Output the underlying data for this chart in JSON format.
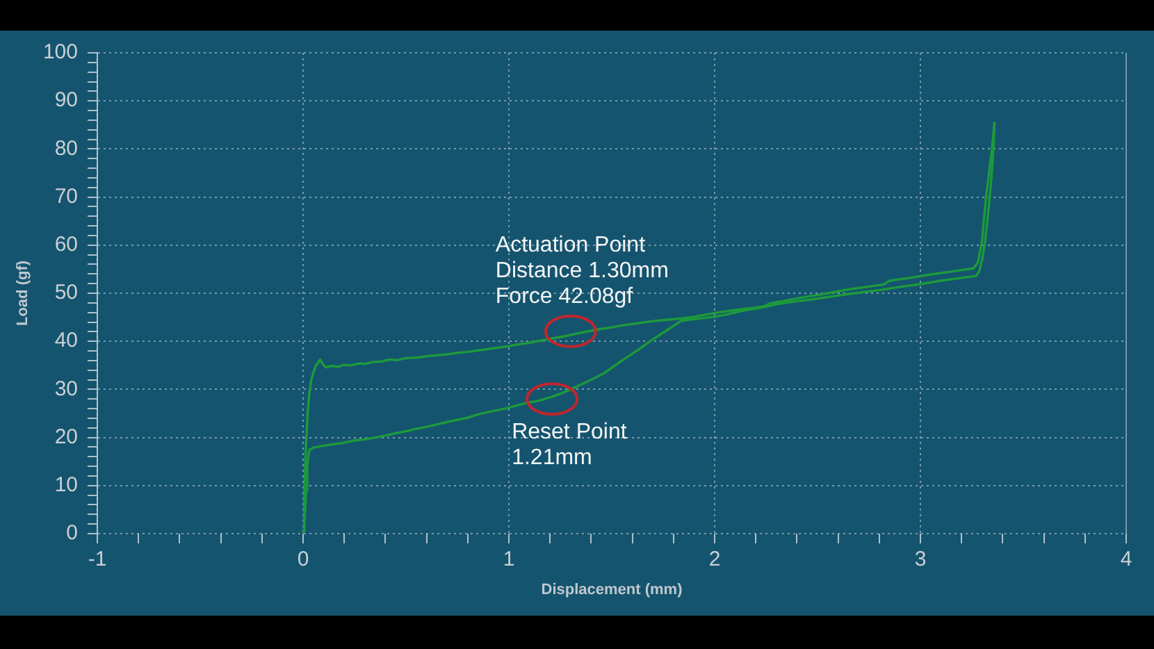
{
  "chart_data": {
    "type": "line",
    "xlabel": "Displacement (mm)",
    "ylabel": "Load (gf)",
    "xlim": [
      -1,
      4
    ],
    "ylim": [
      0,
      100
    ],
    "xticks": [
      -1,
      {
        "value": -0.8,
        "label": null
      },
      {
        "value": -0.6,
        "label": null
      },
      {
        "value": -0.4,
        "label": null
      },
      {
        "value": -0.2,
        "label": null
      },
      0,
      {
        "value": 0.2,
        "label": null
      },
      {
        "value": 0.4,
        "label": null
      },
      {
        "value": 0.6,
        "label": null
      },
      {
        "value": 0.8,
        "label": null
      },
      1,
      {
        "value": 1.2,
        "label": null
      },
      {
        "value": 1.4,
        "label": null
      },
      {
        "value": 1.6,
        "label": null
      },
      {
        "value": 1.8,
        "label": null
      },
      2,
      {
        "value": 2.2,
        "label": null
      },
      {
        "value": 2.4,
        "label": null
      },
      {
        "value": 2.6,
        "label": null
      },
      {
        "value": 2.8,
        "label": null
      },
      3,
      {
        "value": 3.2,
        "label": null
      },
      {
        "value": 3.4,
        "label": null
      },
      {
        "value": 3.6,
        "label": null
      },
      {
        "value": 3.8,
        "label": null
      },
      4
    ],
    "yticks": [
      0,
      {
        "value": 2,
        "label": null
      },
      {
        "value": 4,
        "label": null
      },
      {
        "value": 6,
        "label": null
      },
      {
        "value": 8,
        "label": null
      },
      10,
      {
        "value": 12,
        "label": null
      },
      {
        "value": 14,
        "label": null
      },
      {
        "value": 16,
        "label": null
      },
      {
        "value": 18,
        "label": null
      },
      20,
      {
        "value": 22,
        "label": null
      },
      {
        "value": 24,
        "label": null
      },
      {
        "value": 26,
        "label": null
      },
      {
        "value": 28,
        "label": null
      },
      30,
      {
        "value": 32,
        "label": null
      },
      {
        "value": 34,
        "label": null
      },
      {
        "value": 36,
        "label": null
      },
      {
        "value": 38,
        "label": null
      },
      40,
      {
        "value": 42,
        "label": null
      },
      {
        "value": 44,
        "label": null
      },
      {
        "value": 46,
        "label": null
      },
      {
        "value": 48,
        "label": null
      },
      50,
      {
        "value": 52,
        "label": null
      },
      {
        "value": 54,
        "label": null
      },
      {
        "value": 56,
        "label": null
      },
      {
        "value": 58,
        "label": null
      },
      60,
      {
        "value": 62,
        "label": null
      },
      {
        "value": 64,
        "label": null
      },
      {
        "value": 66,
        "label": null
      },
      {
        "value": 68,
        "label": null
      },
      70,
      {
        "value": 72,
        "label": null
      },
      {
        "value": 74,
        "label": null
      },
      {
        "value": 76,
        "label": null
      },
      {
        "value": 78,
        "label": null
      },
      80,
      {
        "value": 82,
        "label": null
      },
      {
        "value": 84,
        "label": null
      },
      {
        "value": 86,
        "label": null
      },
      {
        "value": 88,
        "label": null
      },
      90,
      {
        "value": 92,
        "label": null
      },
      {
        "value": 94,
        "label": null
      },
      {
        "value": 96,
        "label": null
      },
      {
        "value": 98,
        "label": null
      },
      100
    ],
    "grid": true,
    "series": [
      {
        "color": "#1d9a3c",
        "x": [
          0,
          0.006,
          0.01,
          0.016,
          0.022,
          0.03,
          0.04,
          0.06,
          0.083,
          0.095,
          0.11,
          0.14,
          0.17,
          0.2,
          0.23,
          0.27,
          0.3,
          0.34,
          0.38,
          0.42,
          0.46,
          0.5,
          0.55,
          0.6,
          0.65,
          0.7,
          0.75,
          0.8,
          0.85,
          0.9,
          0.95,
          1,
          1.05,
          1.1,
          1.15,
          1.2,
          1.25,
          1.3,
          1.35,
          1.4,
          1.45,
          1.5,
          1.55,
          1.6,
          1.65,
          1.7,
          1.75,
          1.8,
          1.85,
          1.9,
          1.95,
          2,
          2.05,
          2.1,
          2.15,
          2.2,
          2.24,
          2.27,
          2.35,
          2.45,
          2.55,
          2.65,
          2.75,
          2.82,
          2.85,
          2.95,
          3.05,
          3.15,
          3.26,
          3.28,
          3.3,
          3.31,
          3.32,
          3.335,
          3.35,
          3.36
        ],
        "values": [
          0.5,
          8,
          14,
          20,
          25,
          29,
          32,
          34.8,
          36.2,
          35.3,
          34.6,
          34.9,
          34.7,
          35.1,
          35,
          35.4,
          35.3,
          35.7,
          35.8,
          36.2,
          36.1,
          36.5,
          36.6,
          36.9,
          37.1,
          37.3,
          37.6,
          37.8,
          38.1,
          38.4,
          38.7,
          39,
          39.4,
          39.7,
          40.1,
          40.5,
          40.9,
          41.3,
          41.8,
          42.2,
          42.6,
          42.9,
          43.3,
          43.6,
          43.9,
          44.2,
          44.4,
          44.6,
          44.8,
          45.1,
          45.5,
          45.9,
          46.2,
          46.5,
          46.8,
          47,
          47.3,
          47.9,
          48.5,
          49.3,
          50,
          50.8,
          51.4,
          51.8,
          52.6,
          53.2,
          53.9,
          54.5,
          55.2,
          56.5,
          61,
          66,
          70.5,
          75.5,
          81,
          85.5
        ]
      },
      {
        "color": "#1d9a3c",
        "x": [
          0,
          0.005,
          0.01,
          0.015,
          0.02,
          0.03,
          0.05,
          0.1,
          0.15,
          0.2,
          0.25,
          0.3,
          0.35,
          0.4,
          0.45,
          0.5,
          0.55,
          0.6,
          0.65,
          0.7,
          0.75,
          0.8,
          0.85,
          0.9,
          0.95,
          1,
          1.05,
          1.1,
          1.15,
          1.21,
          1.25,
          1.3,
          1.35,
          1.4,
          1.46,
          1.5,
          1.55,
          1.6,
          1.65,
          1.7,
          1.75,
          1.8,
          1.84,
          1.92,
          2,
          2.05,
          2.13,
          2.2,
          2.25,
          2.3,
          2.36,
          2.47,
          2.58,
          2.7,
          2.81,
          2.85,
          2.95,
          3.03,
          3.1,
          3.2,
          3.27,
          3.285,
          3.3,
          3.315,
          3.33,
          3.345,
          3.355,
          3.36
        ],
        "values": [
          0.5,
          1.5,
          5,
          9,
          14,
          17.4,
          17.9,
          18.3,
          18.6,
          18.9,
          19.4,
          19.6,
          20,
          20.4,
          20.9,
          21.3,
          21.8,
          22.2,
          22.7,
          23.2,
          23.7,
          24.1,
          24.8,
          25.3,
          25.7,
          26.2,
          26.8,
          27.3,
          27.7,
          28.5,
          29.1,
          30,
          31,
          32,
          33.3,
          34.5,
          36,
          37.4,
          38.9,
          40.4,
          41.8,
          43.2,
          44.3,
          44.7,
          45.1,
          45.5,
          46.3,
          46.8,
          47.2,
          47.7,
          48.1,
          48.7,
          49.4,
          50.1,
          50.7,
          51,
          51.6,
          52.1,
          52.6,
          53.2,
          53.6,
          54.5,
          57,
          61,
          67,
          74,
          80,
          85.5
        ]
      }
    ],
    "annotations": [
      {
        "text": "Actuation Point\nDistance 1.30mm\nForce 42.08gf",
        "x": 1.3,
        "y": 42.08
      },
      {
        "text": "Reset Point\n1.21mm",
        "x": 1.21,
        "y": 28
      }
    ]
  }
}
